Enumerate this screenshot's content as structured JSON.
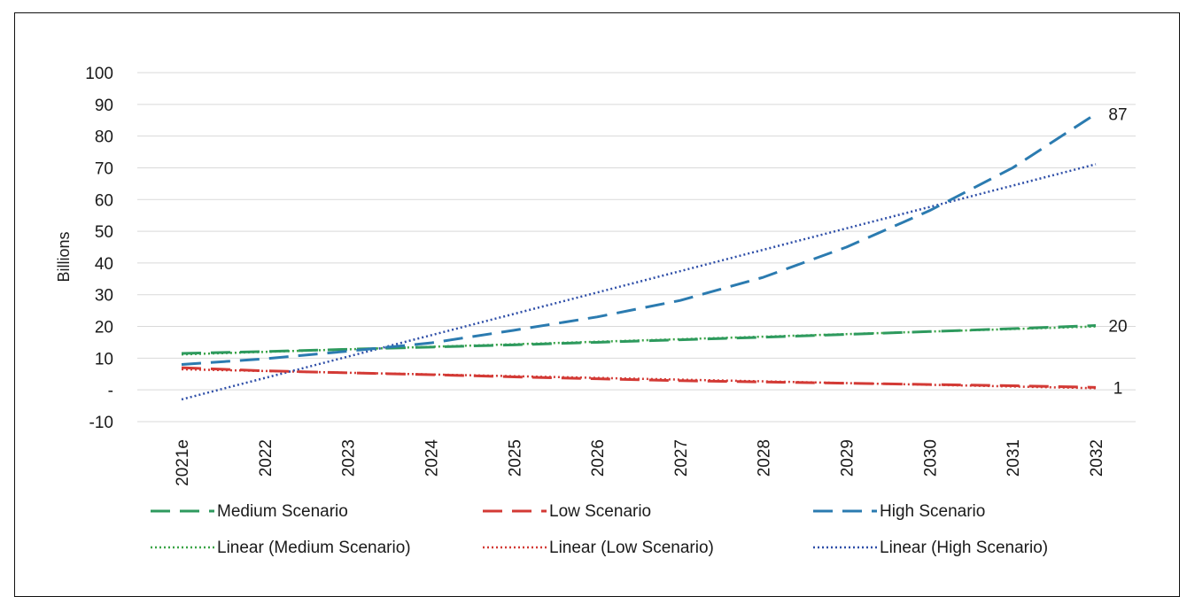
{
  "chart_data": {
    "type": "line",
    "title": "",
    "xlabel": "",
    "ylabel": "Billions",
    "ylim": [
      -10,
      100
    ],
    "yticks": [
      {
        "value": -10,
        "label": "-10"
      },
      {
        "value": 0,
        "label": "-"
      },
      {
        "value": 10,
        "label": "10"
      },
      {
        "value": 20,
        "label": "20"
      },
      {
        "value": 30,
        "label": "30"
      },
      {
        "value": 40,
        "label": "40"
      },
      {
        "value": 50,
        "label": "50"
      },
      {
        "value": 60,
        "label": "60"
      },
      {
        "value": 70,
        "label": "70"
      },
      {
        "value": 80,
        "label": "80"
      },
      {
        "value": 90,
        "label": "90"
      },
      {
        "value": 100,
        "label": "100"
      }
    ],
    "categories": [
      "2021e",
      "2022",
      "2023",
      "2024",
      "2025",
      "2026",
      "2027",
      "2028",
      "2029",
      "2030",
      "2031",
      "2032"
    ],
    "grid": true,
    "legend_position": "bottom",
    "series": [
      {
        "name": "Medium Scenario",
        "color": "#2e9a5e",
        "style": "dashed",
        "values": [
          11.5,
          12.1,
          12.8,
          13.5,
          14.2,
          15.0,
          15.8,
          16.6,
          17.5,
          18.4,
          19.3,
          20.3
        ]
      },
      {
        "name": "Low Scenario",
        "color": "#d33a35",
        "style": "dashed",
        "values": [
          7.0,
          6.0,
          5.4,
          4.8,
          4.1,
          3.5,
          2.9,
          2.5,
          2.1,
          1.7,
          1.3,
          0.8
        ]
      },
      {
        "name": "High Scenario",
        "color": "#2b7bb0",
        "style": "dashed",
        "values": [
          8.0,
          9.8,
          12.2,
          14.8,
          18.8,
          23.0,
          28.2,
          35.5,
          45.0,
          56.5,
          70.0,
          87.0
        ]
      },
      {
        "name": "Linear (Medium Scenario)",
        "color": "#3aa447",
        "style": "dotted",
        "trend_of": "Medium Scenario"
      },
      {
        "name": "Linear (Low Scenario)",
        "color": "#d33a35",
        "style": "dotted",
        "trend_of": "Low Scenario"
      },
      {
        "name": "Linear (High Scenario)",
        "color": "#2f4fa8",
        "style": "dotted",
        "trend_of": "High Scenario"
      }
    ],
    "annotations": [
      {
        "text": "87",
        "series": "High Scenario"
      },
      {
        "text": "20",
        "series": "Medium Scenario"
      },
      {
        "text": "1",
        "series": "Low Scenario"
      }
    ]
  }
}
